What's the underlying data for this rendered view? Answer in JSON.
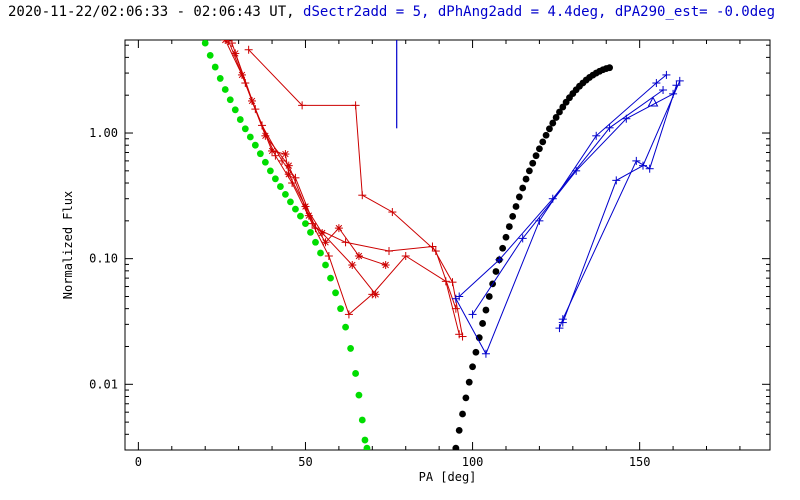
{
  "title": {
    "black_part": "2020-11-22/02:06:33 - 02:06:43 UT, ",
    "blue_part": "dSectr2add = 5, dPhAng2add = 4.4deg, dPA290_est= -0.0deg"
  },
  "colors": {
    "axis": "#000000",
    "red": "#cc0000",
    "blue": "#0000cc",
    "green": "#00dd00",
    "black": "#000000"
  },
  "chart_data": {
    "type": "scatter",
    "title": "2020-11-22/02:06:33 - 02:06:43 UT, dSectr2add = 5, dPhAng2add = 4.4deg, dPA290_est= -0.0deg",
    "xlabel": "PA [deg]",
    "ylabel": "Normalized Flux",
    "xlim": [
      -4,
      189
    ],
    "ylim": [
      0.003,
      5.5
    ],
    "yscale": "log",
    "grid": false,
    "x_major_ticks": [
      {
        "v": 0,
        "label": "0"
      },
      {
        "v": 50,
        "label": "50"
      },
      {
        "v": 100,
        "label": "100"
      },
      {
        "v": 150,
        "label": "150"
      }
    ],
    "x_minor_step": 10,
    "y_major_ticks": [
      {
        "v": 1.0,
        "label": "1.00"
      },
      {
        "v": 0.1,
        "label": "0.10"
      },
      {
        "v": 0.01,
        "label": "0.01"
      }
    ],
    "vline": {
      "x": 77.3,
      "y1": 1.09,
      "y2": 5.5,
      "color": "#0000cc"
    },
    "series": [
      {
        "name": "green-model-curve",
        "color": "#00dd00",
        "marker": "dot",
        "size": 3.4,
        "line": false,
        "points": [
          [
            20,
            5.2
          ],
          [
            21.5,
            4.15
          ],
          [
            23,
            3.35
          ],
          [
            24.5,
            2.72
          ],
          [
            26,
            2.22
          ],
          [
            27.5,
            1.84
          ],
          [
            29,
            1.53
          ],
          [
            30.5,
            1.28
          ],
          [
            32,
            1.08
          ],
          [
            33.5,
            0.93
          ],
          [
            35,
            0.8
          ],
          [
            36.5,
            0.685
          ],
          [
            38,
            0.585
          ],
          [
            39.5,
            0.5
          ],
          [
            41,
            0.432
          ],
          [
            42.5,
            0.375
          ],
          [
            44,
            0.325
          ],
          [
            45.5,
            0.283
          ],
          [
            47,
            0.248
          ],
          [
            48.5,
            0.218
          ],
          [
            50,
            0.19
          ],
          [
            51.5,
            0.162
          ],
          [
            53,
            0.135
          ],
          [
            54.5,
            0.111
          ],
          [
            56,
            0.089
          ],
          [
            57.5,
            0.07
          ],
          [
            59,
            0.0535
          ],
          [
            60.5,
            0.04
          ],
          [
            62,
            0.0285
          ],
          [
            63.5,
            0.0193
          ],
          [
            65,
            0.0122
          ],
          [
            66,
            0.0082
          ],
          [
            67,
            0.0052
          ],
          [
            67.8,
            0.0036
          ],
          [
            68.4,
            0.0031
          ]
        ]
      },
      {
        "name": "black-model-curve",
        "color": "#000000",
        "marker": "dot",
        "size": 3.4,
        "line": false,
        "points": [
          [
            95,
            0.0031
          ],
          [
            96,
            0.0043
          ],
          [
            97,
            0.0058
          ],
          [
            98,
            0.0078
          ],
          [
            99,
            0.0104
          ],
          [
            100,
            0.0138
          ],
          [
            101,
            0.018
          ],
          [
            102,
            0.0235
          ],
          [
            103,
            0.0305
          ],
          [
            104,
            0.039
          ],
          [
            105,
            0.05
          ],
          [
            106,
            0.063
          ],
          [
            107,
            0.079
          ],
          [
            108,
            0.098
          ],
          [
            109,
            0.121
          ],
          [
            110,
            0.148
          ],
          [
            111,
            0.18
          ],
          [
            112,
            0.217
          ],
          [
            113,
            0.26
          ],
          [
            114,
            0.31
          ],
          [
            115,
            0.365
          ],
          [
            116,
            0.43
          ],
          [
            117,
            0.5
          ],
          [
            118,
            0.575
          ],
          [
            119,
            0.66
          ],
          [
            120,
            0.75
          ],
          [
            121,
            0.85
          ],
          [
            122,
            0.96
          ],
          [
            123,
            1.08
          ],
          [
            124,
            1.2
          ],
          [
            125,
            1.33
          ],
          [
            126,
            1.47
          ],
          [
            127,
            1.61
          ],
          [
            128,
            1.76
          ],
          [
            129,
            1.91
          ],
          [
            130,
            2.06
          ],
          [
            131,
            2.21
          ],
          [
            132,
            2.36
          ],
          [
            133,
            2.5
          ],
          [
            134,
            2.64
          ],
          [
            135,
            2.77
          ],
          [
            136,
            2.89
          ],
          [
            137,
            3.0
          ],
          [
            138,
            3.1
          ],
          [
            139,
            3.19
          ],
          [
            140,
            3.26
          ],
          [
            141,
            3.31
          ]
        ]
      },
      {
        "name": "red-track-1",
        "color": "#cc0000",
        "marker": "plus",
        "size": 4,
        "line": true,
        "points": [
          [
            27,
            5.4
          ],
          [
            32,
            2.5
          ],
          [
            37,
            1.15
          ],
          [
            43,
            0.6
          ],
          [
            47,
            0.44
          ],
          [
            53,
            0.175
          ],
          [
            62,
            0.135
          ],
          [
            75,
            0.115
          ],
          [
            88,
            0.125
          ],
          [
            94,
            0.065
          ],
          [
            97,
            0.024
          ]
        ]
      },
      {
        "name": "red-track-2",
        "color": "#cc0000",
        "marker": "star",
        "size": 4,
        "line": true,
        "points": [
          [
            29,
            4.3
          ],
          [
            34,
            1.8
          ],
          [
            40,
            0.72
          ],
          [
            44,
            0.68
          ],
          [
            45,
            0.47
          ],
          [
            50,
            0.26
          ],
          [
            55,
            0.16
          ],
          [
            64,
            0.089
          ],
          [
            71,
            0.052
          ]
        ]
      },
      {
        "name": "red-track-3",
        "color": "#cc0000",
        "marker": "plus",
        "size": 4,
        "line": true,
        "points": [
          [
            33,
            4.6
          ],
          [
            49,
            1.66
          ],
          [
            65,
            1.66
          ],
          [
            67,
            0.32
          ],
          [
            76,
            0.235
          ],
          [
            89,
            0.115
          ],
          [
            95,
            0.04
          ]
        ]
      },
      {
        "name": "red-track-4",
        "color": "#cc0000",
        "marker": "plus",
        "size": 4,
        "line": true,
        "points": [
          [
            28,
            5.2
          ],
          [
            35,
            1.55
          ],
          [
            41,
            0.66
          ],
          [
            46,
            0.4
          ],
          [
            52,
            0.19
          ],
          [
            57,
            0.105
          ],
          [
            63,
            0.036
          ],
          [
            70,
            0.052
          ],
          [
            80,
            0.105
          ],
          [
            92,
            0.066
          ],
          [
            96,
            0.025
          ]
        ]
      },
      {
        "name": "red-track-5",
        "color": "#cc0000",
        "marker": "star",
        "size": 4,
        "line": true,
        "points": [
          [
            26,
            5.5
          ],
          [
            31,
            2.9
          ],
          [
            38,
            0.95
          ],
          [
            45,
            0.55
          ],
          [
            51,
            0.22
          ],
          [
            56,
            0.135
          ],
          [
            60,
            0.175
          ],
          [
            66,
            0.105
          ],
          [
            74,
            0.089
          ]
        ]
      },
      {
        "name": "blue-track-1",
        "color": "#0000cc",
        "marker": "plus",
        "size": 4,
        "line": true,
        "points": [
          [
            95,
            0.048
          ],
          [
            104,
            0.0175
          ],
          [
            120,
            0.2
          ],
          [
            137,
            0.95
          ],
          [
            155,
            2.5
          ],
          [
            158,
            2.9
          ]
        ]
      },
      {
        "name": "blue-track-2",
        "color": "#0000cc",
        "marker": "plus",
        "size": 4,
        "line": true,
        "points": [
          [
            96,
            0.05
          ],
          [
            108,
            0.098
          ],
          [
            124,
            0.3
          ],
          [
            141,
            1.1
          ],
          [
            157,
            2.2
          ]
        ]
      },
      {
        "name": "blue-track-3",
        "color": "#0000cc",
        "marker": "plus",
        "size": 4,
        "line": true,
        "points": [
          [
            100,
            0.036
          ],
          [
            115,
            0.145
          ],
          [
            131,
            0.5
          ],
          [
            146,
            1.3
          ],
          [
            160,
            2.05
          ]
        ]
      },
      {
        "name": "blue-track-4",
        "color": "#0000cc",
        "marker": "plus",
        "size": 4,
        "line": true,
        "points": [
          [
            126,
            0.028
          ],
          [
            127,
            0.033
          ],
          [
            149,
            0.6
          ],
          [
            153,
            0.52
          ],
          [
            161,
            2.4
          ]
        ]
      },
      {
        "name": "blue-track-5",
        "color": "#0000cc",
        "marker": "plus",
        "size": 4,
        "line": true,
        "points": [
          [
            127,
            0.031
          ],
          [
            143,
            0.42
          ],
          [
            151,
            0.55
          ],
          [
            162,
            2.6
          ]
        ]
      },
      {
        "name": "blue-triangle-point",
        "color": "#0000cc",
        "marker": "triangle",
        "size": 5,
        "line": false,
        "points": [
          [
            154,
            1.75
          ]
        ]
      }
    ]
  }
}
